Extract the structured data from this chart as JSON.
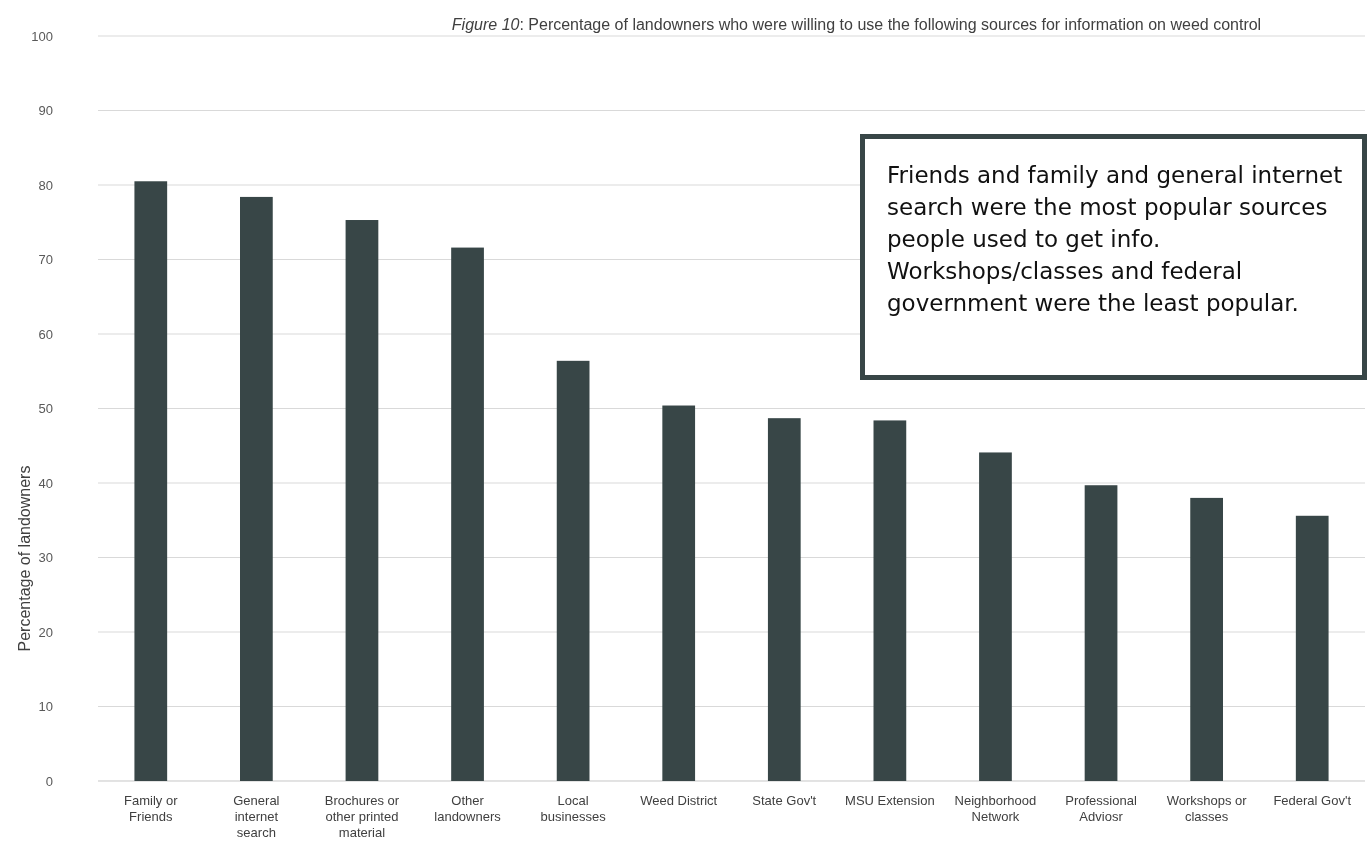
{
  "chart_data": {
    "type": "bar",
    "title": "Figure 10: Percentage of landowners who were willing to use the following sources for information on weed control",
    "ylabel": "Percentage of landowners",
    "categories": [
      "Family or Friends",
      "General internet search",
      "Brochures or other printed material",
      "Other landowners",
      "Local businesses",
      "Weed District",
      "State Gov't",
      "MSU Extension",
      "Neighborhood Network",
      "Professional Adviosr",
      "Workshops or classes",
      "Federal Gov't"
    ],
    "values": [
      80.5,
      78.4,
      75.3,
      71.6,
      56.4,
      50.4,
      48.7,
      48.4,
      44.1,
      39.7,
      38.0,
      35.6
    ],
    "color": "#384647",
    "ylim": [
      0,
      100
    ],
    "yticks": [
      0,
      10,
      20,
      30,
      40,
      50,
      60,
      70,
      80,
      90,
      100
    ],
    "grid": "y",
    "annotations": [
      "Friends and family and general internet search were the most popular sources people used to get info. Workshops/classes and federal government were the least popular."
    ]
  }
}
